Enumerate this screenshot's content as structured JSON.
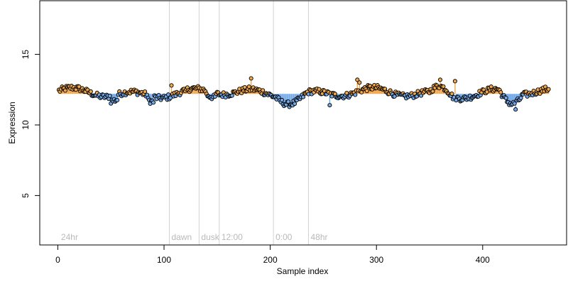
{
  "chart_data": {
    "type": "scatter",
    "title": "",
    "xlabel": "Sample index",
    "ylabel": "Expression",
    "xlim": [
      -17,
      479
    ],
    "ylim": [
      1.5,
      18.8
    ],
    "baseline": 12.2,
    "x_ticks": [
      0,
      100,
      200,
      300,
      400
    ],
    "y_ticks": [
      5,
      10,
      15
    ],
    "phase_markers": [
      {
        "label": "24hr",
        "x": 1
      },
      {
        "label": "dawn",
        "x": 105
      },
      {
        "label": "dusk",
        "x": 133
      },
      {
        "label": "12:00",
        "x": 152
      },
      {
        "label": "0:00",
        "x": 203
      },
      {
        "label": "48hr",
        "x": 236
      }
    ],
    "colors": {
      "above": "#f0a64a",
      "below": "#74a9e8",
      "grid": "#d3d3d3",
      "phase_label": "#b9b9b9",
      "point_stroke": "#000000"
    },
    "x": [],
    "y": []
  }
}
